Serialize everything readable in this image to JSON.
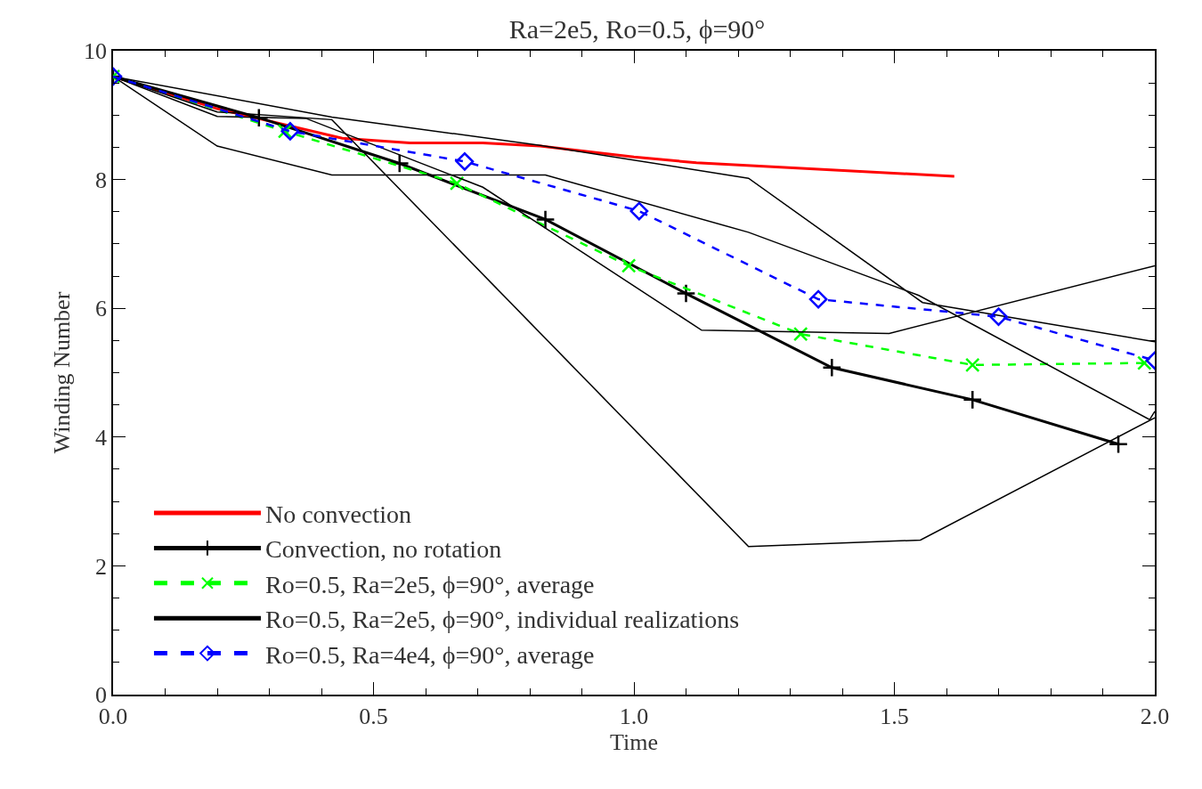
{
  "chart_data": {
    "type": "line",
    "title": "Ra=2e5, Ro=0.5, ϕ=90°",
    "xlabel": "Time",
    "ylabel": "Winding Number",
    "xlim": [
      0,
      2
    ],
    "xticks": [
      {
        "value": 0,
        "label": "0.0"
      },
      {
        "value": 0.5,
        "label": "0.5"
      },
      {
        "value": 1,
        "label": "1.0"
      },
      {
        "value": 1.5,
        "label": "1.5"
      },
      {
        "value": 2,
        "label": "2.0"
      }
    ],
    "ylim": [
      0,
      10
    ],
    "yticks": [
      0,
      2,
      4,
      6,
      8,
      10
    ],
    "legend": "bottom left",
    "series": [
      {
        "name": "No convection",
        "color": "#ff0000",
        "marker": "none",
        "line_style": "solid",
        "x": [
          0,
          0.2,
          0.44,
          0.57,
          0.71,
          0.82,
          1.0,
          1.12,
          1.615
        ],
        "values": [
          9.6,
          9.1,
          8.64,
          8.57,
          8.57,
          8.52,
          8.35,
          8.26,
          8.05
        ]
      },
      {
        "name": "Convection, no rotation",
        "color": "#000000",
        "marker": "cross",
        "line_style": "solid",
        "x": [
          0,
          0.28,
          0.55,
          0.83,
          1.1,
          1.38,
          1.65,
          1.93
        ],
        "values": [
          9.6,
          8.96,
          8.25,
          7.38,
          6.23,
          5.08,
          4.58,
          3.89
        ]
      },
      {
        "name": "Ro=0.5, Ra=2e5, ϕ=90°, average",
        "color": "#00ff00",
        "marker": "x",
        "line_style": "dashed",
        "x": [
          0,
          0.33,
          0.66,
          0.99,
          1.32,
          1.65,
          1.98
        ],
        "values": [
          9.6,
          8.75,
          7.94,
          6.66,
          5.6,
          5.12,
          5.15
        ]
      },
      {
        "name": "Ro=0.5, Ra=2e5, ϕ=90°, individual realizations",
        "color": "#000000",
        "marker": "none",
        "line_style": "solid",
        "x": [
          0,
          0.2,
          0.42,
          0.83,
          1.22,
          1.547,
          1.99,
          2.0
        ],
        "values": [
          9.6,
          8.52,
          8.07,
          8.07,
          7.18,
          6.2,
          4.27,
          4.4
        ]
      },
      {
        "color": "#000000",
        "marker": "none",
        "line_style": "solid",
        "x": [
          0,
          0.2,
          0.37,
          0.71,
          1.13,
          1.49,
          2.0
        ],
        "values": [
          9.6,
          8.98,
          8.95,
          7.88,
          5.66,
          5.61,
          6.66
        ]
      },
      {
        "color": "#000000",
        "marker": "none",
        "line_style": "solid",
        "x": [
          0,
          0.2,
          0.42,
          1.22,
          1.55,
          2.0
        ],
        "values": [
          9.6,
          9.05,
          8.93,
          2.3,
          2.4,
          4.3
        ]
      },
      {
        "color": "#000000",
        "marker": "none",
        "line_style": "solid",
        "x": [
          0,
          0.42,
          0.82,
          1.22,
          1.554,
          2.0
        ],
        "values": [
          9.6,
          8.97,
          8.53,
          8.02,
          6.09,
          5.48
        ]
      },
      {
        "name": "Ro=0.5, Ra=4e4, ϕ=90°, average",
        "color": "#0000ff",
        "marker": "diamond",
        "line_style": "dashed",
        "x": [
          0,
          0.34,
          0.675,
          1.01,
          1.354,
          1.7,
          2.0
        ],
        "values": [
          9.6,
          8.75,
          8.28,
          7.51,
          6.14,
          5.87,
          5.19
        ]
      }
    ]
  }
}
